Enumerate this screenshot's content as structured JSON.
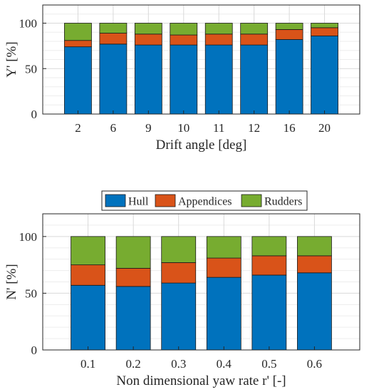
{
  "chart_data": [
    {
      "type": "bar",
      "stacked": true,
      "percent_of_total": true,
      "xlabel": "Drift angle [deg]",
      "ylabel": "Y' [%]",
      "ylim": [
        0,
        120
      ],
      "yticks": [
        0,
        50,
        100
      ],
      "grid": true,
      "categories": [
        "2",
        "6",
        "9",
        "10",
        "11",
        "12",
        "16",
        "20"
      ],
      "series": [
        {
          "name": "Hull",
          "color": "#0072BD",
          "values": [
            74,
            77,
            76,
            76,
            76,
            76,
            82,
            86
          ]
        },
        {
          "name": "Appendices",
          "color": "#D95319",
          "values": [
            7,
            12,
            12,
            11,
            12,
            12,
            11,
            9
          ]
        },
        {
          "name": "Rudders",
          "color": "#77AC30",
          "values": [
            19,
            11,
            12,
            13,
            12,
            12,
            7,
            5
          ]
        }
      ]
    },
    {
      "type": "bar",
      "stacked": true,
      "percent_of_total": true,
      "xlabel": "Non dimensional yaw rate r' [-]",
      "ylabel": "N' [%]",
      "ylim": [
        0,
        120
      ],
      "yticks": [
        0,
        50,
        100
      ],
      "grid": true,
      "legend_position": "top-outside",
      "categories": [
        "0.1",
        "0.2",
        "0.3",
        "0.4",
        "0.5",
        "0.6"
      ],
      "series": [
        {
          "name": "Hull",
          "color": "#0072BD",
          "values": [
            57,
            56,
            59,
            64,
            66,
            68
          ]
        },
        {
          "name": "Appendices",
          "color": "#D95319",
          "values": [
            18,
            16,
            18,
            17,
            17,
            15
          ]
        },
        {
          "name": "Rudders",
          "color": "#77AC30",
          "values": [
            25,
            28,
            23,
            19,
            17,
            17
          ]
        }
      ]
    }
  ]
}
